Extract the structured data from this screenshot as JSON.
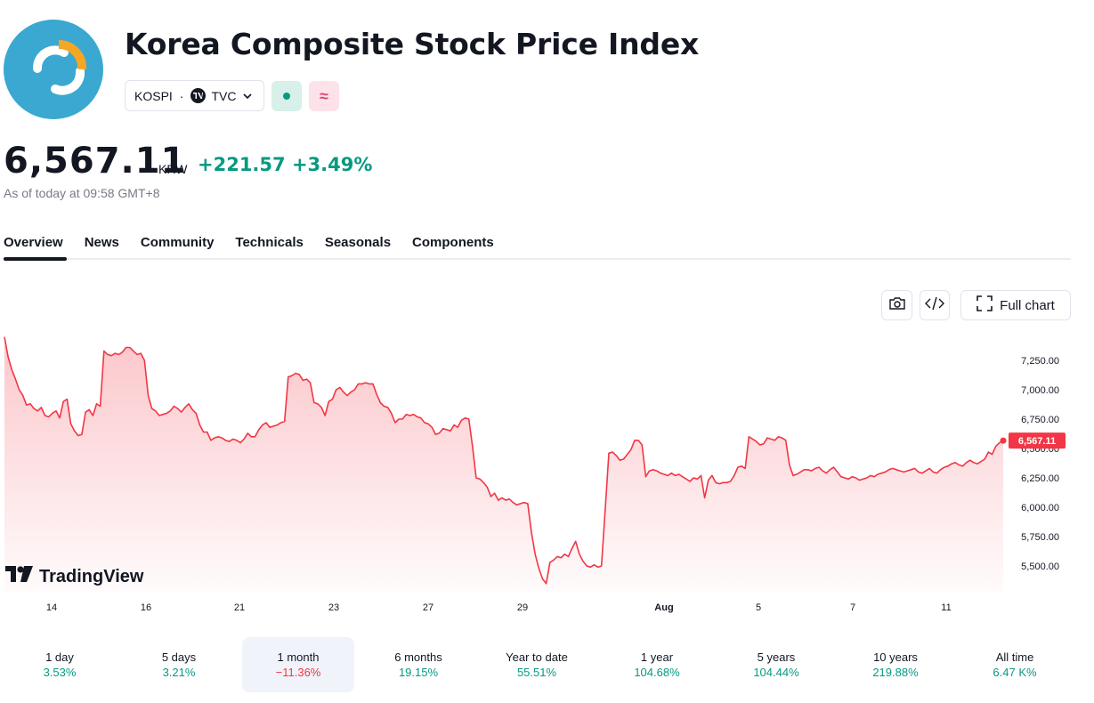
{
  "header": {
    "title": "Korea Composite Stock Price Index",
    "symbol": "KOSPI",
    "separator": "·",
    "exchange": "TVC",
    "exchange_icon": "tradingview-badge-icon",
    "status_market_icon": "market-open-dot-icon",
    "status_extra_icon": "approx-wave-icon",
    "logo_icon": "kospi-logo-icon"
  },
  "quote": {
    "price": "6,567.11",
    "currency": "KRW",
    "change": "+221.57",
    "change_pct": "+3.49%",
    "as_of": "As of today at 09:58 GMT+8"
  },
  "tabs": [
    "Overview",
    "News",
    "Community",
    "Technicals",
    "Seasonals",
    "Components"
  ],
  "active_tab": "Overview",
  "toolbar": {
    "full_chart_label": "Full chart",
    "camera_icon": "camera-icon",
    "embed_icon": "code-embed-icon",
    "fullscreen_icon": "fullscreen-icon"
  },
  "brand": {
    "name": "TradingView",
    "icon": "tradingview-logo-icon"
  },
  "colors": {
    "line": "#f23645",
    "positive": "#089981",
    "negative": "#f23645",
    "logo_bg": "#3aa8d0",
    "logo_accent": "#f5a623"
  },
  "chart_data": {
    "type": "area",
    "x_tick_labels": [
      "14",
      "16",
      "21",
      "23",
      "27",
      "29",
      "Aug",
      "5",
      "7",
      "11"
    ],
    "y_tick_labels": [
      "7,250.00",
      "7,000.00",
      "6,750.00",
      "6,500.00",
      "6,250.00",
      "6,000.00",
      "5,750.00",
      "5,500.00"
    ],
    "y_ticks": [
      7250,
      7000,
      6750,
      6500,
      6250,
      6000,
      5750,
      5500
    ],
    "ylim": [
      5300,
      7480
    ],
    "last_value_label": "6,567.11",
    "values": [
      7450,
      7280,
      7170,
      7090,
      7000,
      6950,
      6870,
      6880,
      6840,
      6820,
      6850,
      6780,
      6770,
      6800,
      6820,
      6760,
      6900,
      6920,
      6710,
      6650,
      6610,
      6620,
      6810,
      6830,
      6780,
      6880,
      6860,
      7330,
      7300,
      7290,
      7310,
      7300,
      7320,
      7360,
      7360,
      7330,
      7300,
      7310,
      7250,
      6950,
      6840,
      6820,
      6780,
      6790,
      6800,
      6820,
      6860,
      6840,
      6810,
      6850,
      6880,
      6830,
      6800,
      6700,
      6640,
      6640,
      6570,
      6590,
      6600,
      6590,
      6570,
      6560,
      6580,
      6570,
      6550,
      6580,
      6630,
      6600,
      6600,
      6660,
      6700,
      6720,
      6680,
      6690,
      6700,
      6720,
      6730,
      7110,
      7120,
      7140,
      7130,
      7080,
      7090,
      7060,
      6890,
      6880,
      6850,
      6780,
      6900,
      6920,
      7000,
      7020,
      6980,
      6950,
      6980,
      7000,
      7050,
      7050,
      7060,
      7050,
      7050,
      6960,
      6890,
      6860,
      6850,
      6800,
      6720,
      6750,
      6750,
      6790,
      6780,
      6790,
      6770,
      6760,
      6720,
      6710,
      6680,
      6620,
      6630,
      6670,
      6660,
      6650,
      6700,
      6680,
      6740,
      6760,
      6750,
      6520,
      6250,
      6240,
      6210,
      6170,
      6090,
      6120,
      6060,
      6080,
      6060,
      6070,
      6040,
      6020,
      6030,
      6040,
      6030,
      5780,
      5600,
      5480,
      5390,
      5350,
      5530,
      5550,
      5580,
      5570,
      5600,
      5580,
      5650,
      5710,
      5600,
      5540,
      5500,
      5490,
      5510,
      5490,
      5500,
      5980,
      6460,
      6470,
      6440,
      6400,
      6410,
      6450,
      6490,
      6570,
      6570,
      6530,
      6260,
      6310,
      6320,
      6310,
      6290,
      6280,
      6270,
      6290,
      6270,
      6280,
      6260,
      6240,
      6220,
      6250,
      6240,
      6270,
      6080,
      6230,
      6270,
      6210,
      6200,
      6210,
      6210,
      6220,
      6270,
      6340,
      6350,
      6330,
      6600,
      6580,
      6560,
      6530,
      6540,
      6590,
      6580,
      6570,
      6600,
      6590,
      6570,
      6360,
      6270,
      6280,
      6300,
      6320,
      6320,
      6310,
      6330,
      6340,
      6310,
      6290,
      6320,
      6340,
      6300,
      6260,
      6250,
      6240,
      6260,
      6250,
      6230,
      6240,
      6250,
      6270,
      6260,
      6280,
      6290,
      6300,
      6320,
      6330,
      6320,
      6310,
      6300,
      6310,
      6320,
      6330,
      6300,
      6290,
      6310,
      6330,
      6300,
      6290,
      6320,
      6340,
      6350,
      6370,
      6380,
      6360,
      6350,
      6380,
      6400,
      6380,
      6370,
      6390,
      6410,
      6470,
      6450,
      6520,
      6550,
      6567
    ]
  },
  "periods": [
    {
      "label": "1 day",
      "value": "3.53%",
      "sign": "pos"
    },
    {
      "label": "5 days",
      "value": "3.21%",
      "sign": "pos"
    },
    {
      "label": "1 month",
      "value": "−11.36%",
      "sign": "neg"
    },
    {
      "label": "6 months",
      "value": "19.15%",
      "sign": "pos"
    },
    {
      "label": "Year to date",
      "value": "55.51%",
      "sign": "pos"
    },
    {
      "label": "1 year",
      "value": "104.68%",
      "sign": "pos"
    },
    {
      "label": "5 years",
      "value": "104.44%",
      "sign": "pos"
    },
    {
      "label": "10 years",
      "value": "219.88%",
      "sign": "pos"
    },
    {
      "label": "All time",
      "value": "6.47 K%",
      "sign": "pos"
    }
  ],
  "active_period": "1 month"
}
